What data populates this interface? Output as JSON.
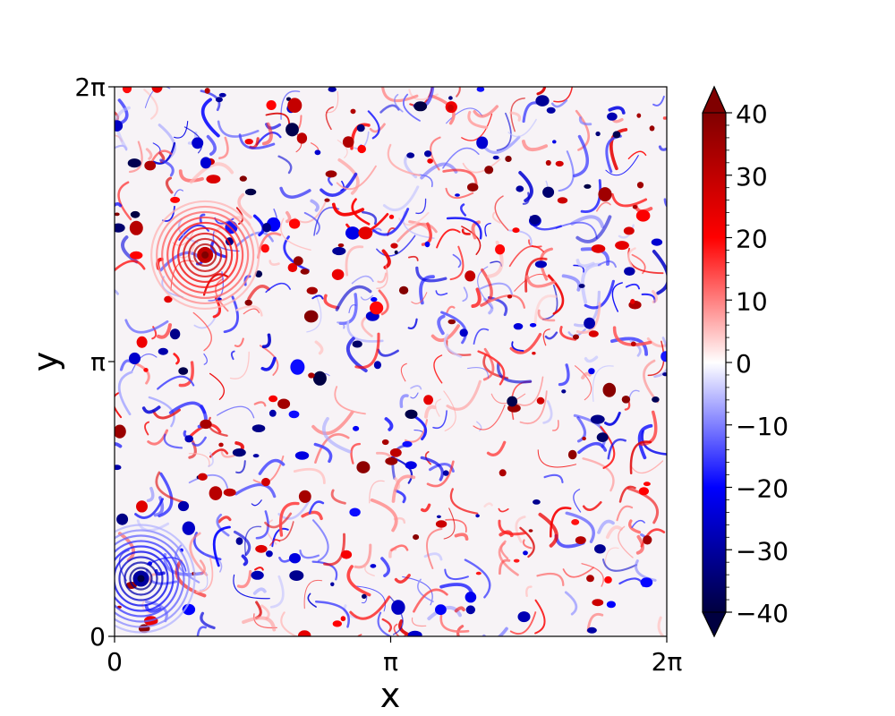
{
  "chart_data": {
    "type": "heatmap",
    "title": "",
    "xlabel": "x",
    "ylabel": "y",
    "x_ticks": [
      {
        "value": 0,
        "label": "0"
      },
      {
        "value": 3.14159265,
        "label": "π"
      },
      {
        "value": 6.28318531,
        "label": "2π"
      }
    ],
    "y_ticks": [
      {
        "value": 0,
        "label": "0"
      },
      {
        "value": 3.14159265,
        "label": "π"
      },
      {
        "value": 6.28318531,
        "label": "2π"
      }
    ],
    "xlim": [
      0,
      6.28318531
    ],
    "ylim": [
      0,
      6.28318531
    ],
    "colorbar": {
      "range": [
        -40,
        40
      ],
      "ticks": [
        40,
        30,
        20,
        10,
        0,
        -10,
        -20,
        -30,
        -40
      ],
      "tick_labels": [
        "40",
        "30",
        "20",
        "10",
        "0",
        "−10",
        "−20",
        "−30",
        "−40"
      ],
      "extend": "both",
      "colormap": "seismic",
      "colors": [
        "#000040",
        "#0000ff",
        "#ffffff",
        "#ff0000",
        "#800000"
      ]
    },
    "notable_vortices": [
      {
        "x": 1.03,
        "y": 4.36,
        "sign": "positive"
      },
      {
        "x": 0.3,
        "y": 0.66,
        "sign": "negative"
      }
    ]
  }
}
